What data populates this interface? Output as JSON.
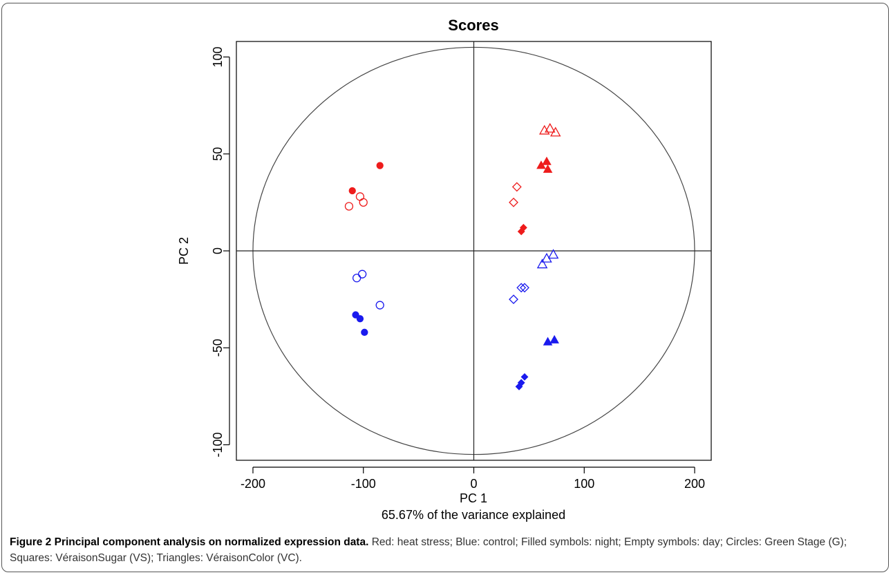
{
  "figure": {
    "caption_label": "Figure 2",
    "caption_title": "Principal component analysis on normalized expression data.",
    "caption_text": "Red: heat stress; Blue: control; Filled symbols: night; Empty symbols: day; Circles: Green Stage (G); Squares: VéraisonSugar (VS); Triangles: VéraisonColor (VC)."
  },
  "colors": {
    "heat_stress": "#ee1c1c",
    "control": "#1a1aee",
    "axis": "#000000"
  },
  "chart_data": {
    "type": "scatter",
    "title": "Scores",
    "xlabel": "PC 1",
    "xlabel_sub": "65.67% of the variance explained",
    "ylabel": "PC 2",
    "xlim": [
      -215,
      215
    ],
    "ylim": [
      -108,
      108
    ],
    "xticks": [
      -200,
      -100,
      0,
      100,
      200
    ],
    "yticks": [
      -100,
      -50,
      0,
      50,
      100
    ],
    "xtick_labels": [
      "-200",
      "-100",
      "0",
      "100",
      "200"
    ],
    "ytick_labels": [
      "-100",
      "-50",
      "0",
      "50",
      "100"
    ],
    "reference_lines": {
      "x": 0,
      "y": 0
    },
    "ellipse": {
      "rx": 200,
      "ry": 105
    },
    "grid": false,
    "points": [
      {
        "x": -85,
        "y": 44,
        "shape": "circle",
        "filled": true,
        "color": "heat_stress"
      },
      {
        "x": -110,
        "y": 31,
        "shape": "circle",
        "filled": true,
        "color": "heat_stress"
      },
      {
        "x": -103,
        "y": 28,
        "shape": "circle",
        "filled": false,
        "color": "heat_stress"
      },
      {
        "x": -100,
        "y": 25,
        "shape": "circle",
        "filled": false,
        "color": "heat_stress"
      },
      {
        "x": -113,
        "y": 23,
        "shape": "circle",
        "filled": false,
        "color": "heat_stress"
      },
      {
        "x": 39,
        "y": 33,
        "shape": "diamond",
        "filled": false,
        "color": "heat_stress"
      },
      {
        "x": 36,
        "y": 25,
        "shape": "diamond",
        "filled": false,
        "color": "heat_stress"
      },
      {
        "x": 45,
        "y": 12,
        "shape": "diamond",
        "filled": true,
        "color": "heat_stress"
      },
      {
        "x": 43,
        "y": 10,
        "shape": "diamond",
        "filled": true,
        "color": "heat_stress"
      },
      {
        "x": 64,
        "y": 62,
        "shape": "triangle",
        "filled": false,
        "color": "heat_stress"
      },
      {
        "x": 69,
        "y": 63,
        "shape": "triangle",
        "filled": false,
        "color": "heat_stress"
      },
      {
        "x": 74,
        "y": 61,
        "shape": "triangle",
        "filled": false,
        "color": "heat_stress"
      },
      {
        "x": 61,
        "y": 44,
        "shape": "triangle",
        "filled": true,
        "color": "heat_stress"
      },
      {
        "x": 66,
        "y": 46,
        "shape": "triangle",
        "filled": true,
        "color": "heat_stress"
      },
      {
        "x": 67,
        "y": 42,
        "shape": "triangle",
        "filled": true,
        "color": "heat_stress"
      },
      {
        "x": -101,
        "y": -12,
        "shape": "circle",
        "filled": false,
        "color": "control"
      },
      {
        "x": -106,
        "y": -14,
        "shape": "circle",
        "filled": false,
        "color": "control"
      },
      {
        "x": -85,
        "y": -28,
        "shape": "circle",
        "filled": false,
        "color": "control"
      },
      {
        "x": -107,
        "y": -33,
        "shape": "circle",
        "filled": true,
        "color": "control"
      },
      {
        "x": -103,
        "y": -35,
        "shape": "circle",
        "filled": true,
        "color": "control"
      },
      {
        "x": -99,
        "y": -42,
        "shape": "circle",
        "filled": true,
        "color": "control"
      },
      {
        "x": 43,
        "y": -19,
        "shape": "diamond",
        "filled": false,
        "color": "control"
      },
      {
        "x": 46,
        "y": -19,
        "shape": "diamond",
        "filled": false,
        "color": "control"
      },
      {
        "x": 36,
        "y": -25,
        "shape": "diamond",
        "filled": false,
        "color": "control"
      },
      {
        "x": 46,
        "y": -65,
        "shape": "diamond",
        "filled": true,
        "color": "control"
      },
      {
        "x": 43,
        "y": -68,
        "shape": "diamond",
        "filled": true,
        "color": "control"
      },
      {
        "x": 41,
        "y": -70,
        "shape": "diamond",
        "filled": true,
        "color": "control"
      },
      {
        "x": 72,
        "y": -2,
        "shape": "triangle",
        "filled": false,
        "color": "control"
      },
      {
        "x": 66,
        "y": -4,
        "shape": "triangle",
        "filled": false,
        "color": "control"
      },
      {
        "x": 62,
        "y": -7,
        "shape": "triangle",
        "filled": false,
        "color": "control"
      },
      {
        "x": 67,
        "y": -47,
        "shape": "triangle",
        "filled": true,
        "color": "control"
      },
      {
        "x": 73,
        "y": -46,
        "shape": "triangle",
        "filled": true,
        "color": "control"
      }
    ]
  }
}
